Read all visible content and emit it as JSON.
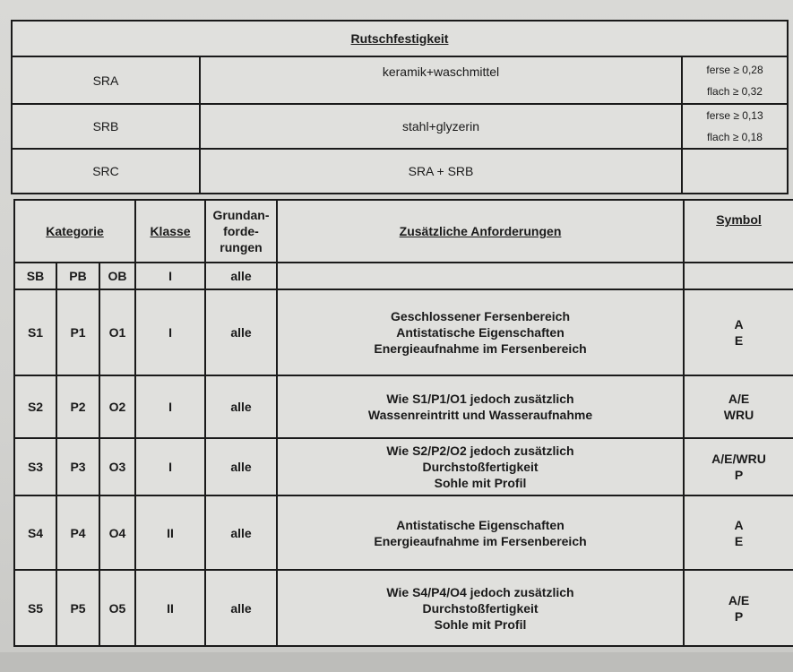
{
  "slip_table": {
    "title": "Rutschfestigkeit",
    "rows": [
      {
        "code": "SRA",
        "condition": "keramik+waschmittel",
        "requirements": [
          "ferse ≥ 0,28",
          "flach ≥ 0,32"
        ]
      },
      {
        "code": "SRB",
        "condition": "stahl+glyzerin",
        "requirements": [
          "ferse ≥ 0,13",
          "flach ≥ 0,18"
        ]
      },
      {
        "code": "SRC",
        "condition": "SRA + SRB",
        "requirements": [
          "",
          ""
        ]
      }
    ]
  },
  "category_table": {
    "headers": {
      "kategorie": "Kategorie",
      "klasse": "Klasse",
      "grund": [
        "Grundan-",
        "forde-",
        "rungen"
      ],
      "zusaetzlich": "Zusätzliche Anforderungen",
      "symbol": "Symbol"
    },
    "subheader": {
      "sb": "SB",
      "pb": "PB",
      "ob": "OB",
      "klasse": "I",
      "grund": "alle"
    },
    "rows": [
      {
        "sb": "S1",
        "pb": "P1",
        "ob": "O1",
        "klasse": "I",
        "grund": "alle",
        "requirements": [
          "Geschlossener Fersenbereich",
          "Antistatische Eigenschaften",
          "Energieaufnahme im Fersenbereich"
        ],
        "symbol": [
          "A",
          "E"
        ]
      },
      {
        "sb": "S2",
        "pb": "P2",
        "ob": "O2",
        "klasse": "I",
        "grund": "alle",
        "requirements": [
          "Wie S1/P1/O1 jedoch zusätzlich",
          "Wassenreintritt und Wasseraufnahme",
          ""
        ],
        "symbol": [
          "A/E",
          "WRU"
        ]
      },
      {
        "sb": "S3",
        "pb": "P3",
        "ob": "O3",
        "klasse": "I",
        "grund": "alle",
        "requirements": [
          "Wie S2/P2/O2 jedoch zusätzlich",
          "Durchstoßfertigkeit",
          "Sohle mit Profil"
        ],
        "symbol": [
          "A/E/WRU",
          "P"
        ]
      },
      {
        "sb": "S4",
        "pb": "P4",
        "ob": "O4",
        "klasse": "II",
        "grund": "alle",
        "requirements": [
          "Antistatische Eigenschaften",
          "Energieaufnahme im Fersenbereich",
          ""
        ],
        "symbol": [
          "A",
          "E"
        ]
      },
      {
        "sb": "S5",
        "pb": "P5",
        "ob": "O5",
        "klasse": "II",
        "grund": "alle",
        "requirements": [
          "Wie S4/P4/O4 jedoch zusätzlich",
          "Durchstoßfertigkeit",
          "Sohle mit Profil"
        ],
        "symbol": [
          "A/E",
          "P"
        ]
      }
    ]
  }
}
